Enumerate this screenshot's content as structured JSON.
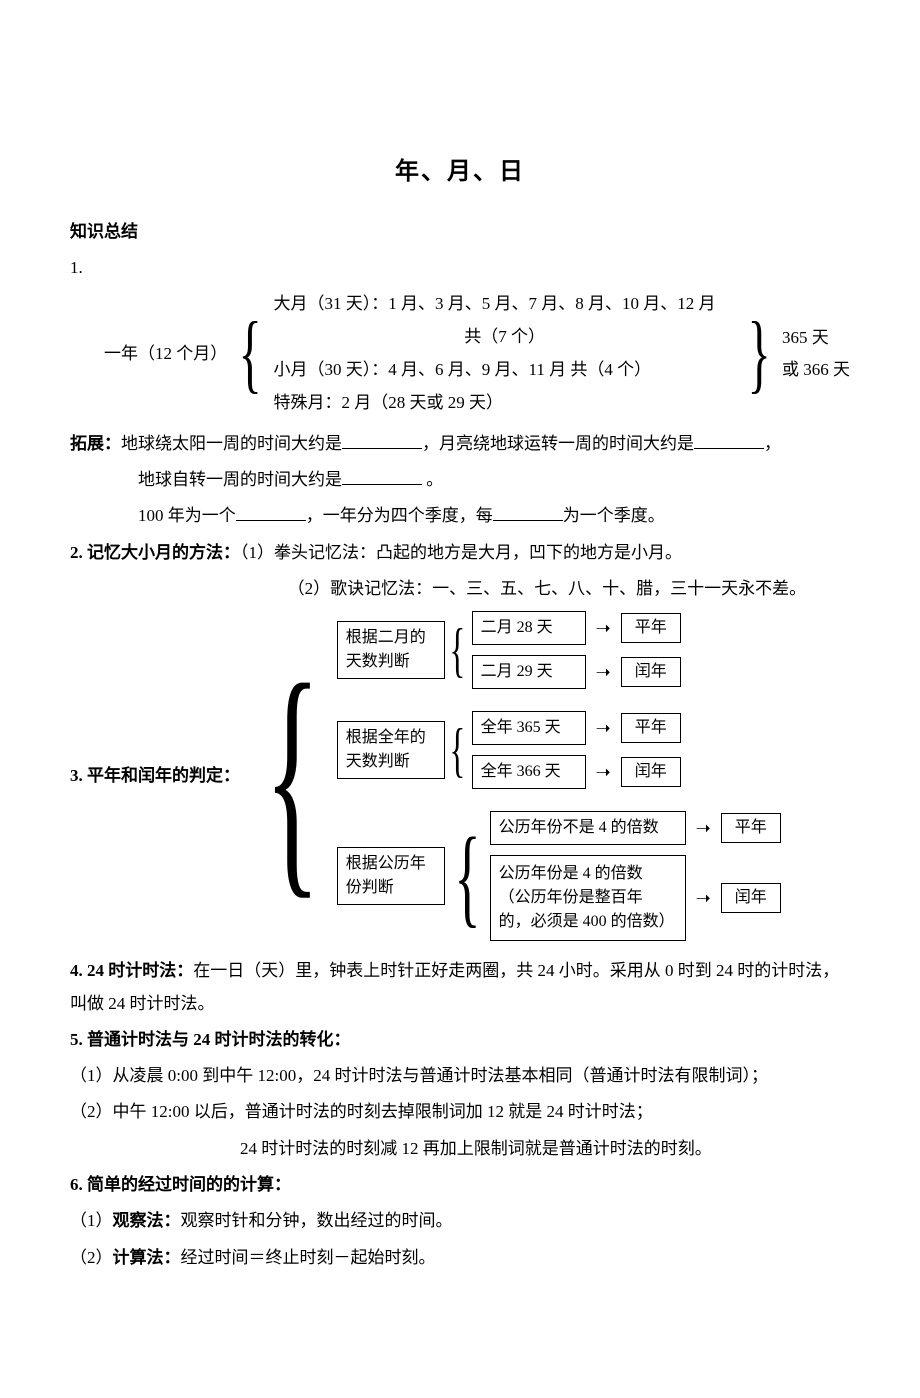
{
  "title": "年、月、日",
  "sectionHead": "知识总结",
  "item1": {
    "num": "1.",
    "left": "一年（12 个月）",
    "row1": "大月（31 天）：1 月、3 月、5 月、7 月、8 月、10 月、12 月",
    "row1b": "共（7 个）",
    "row2": "小月（30 天）：4 月、6 月、9 月、11 月  共（4 个）",
    "row3": "特殊月：2 月（28 天或 29 天）",
    "right1": "365 天",
    "right2": "或 366 天"
  },
  "expand": {
    "label": "拓展：",
    "line1a": "地球绕太阳一周的时间大约是",
    "line1b": "，月亮绕地球运转一周的时间大约是",
    "line1c": "，",
    "line2a": "地球自转一周的时间大约是",
    "line2b": " 。",
    "line3a": "100 年为一个",
    "line3b": "，一年分为四个季度，每",
    "line3c": "为一个季度。"
  },
  "item2": {
    "label": "2. 记忆大小月的方法：",
    "m1label": "（1）拳头记忆法：",
    "m1text": "凸起的地方是大月，凹下的地方是小月。",
    "m2label": "（2）歌诀记忆法：",
    "m2text": "一、三、五、七、八、十、腊，三十一天永不差。"
  },
  "item3": {
    "label": "3. 平年和闰年的判定：",
    "g1": {
      "head1": "根据二月的",
      "head2": "天数判断",
      "a": "二月 28 天",
      "aout": "平年",
      "b": "二月 29 天",
      "bout": "闰年"
    },
    "g2": {
      "head1": "根据全年的",
      "head2": "天数判断",
      "a": "全年 365 天",
      "aout": "平年",
      "b": "全年 366 天",
      "bout": "闰年"
    },
    "g3": {
      "head1": "根据公历年",
      "head2": "份判断",
      "a": "公历年份不是 4 的倍数",
      "aout": "平年",
      "b1": "公历年份是 4 的倍数",
      "b2": "（公历年份是整百年",
      "b3": "的，必须是 400 的倍数）",
      "bout": "闰年"
    }
  },
  "item4": {
    "label": "4. 24 时计时法：",
    "text": "在一日（天）里，钟表上时针正好走两圈，共 24 小时。采用从 0 时到 24 时的计时法，叫做 24 时计时法。"
  },
  "item5": {
    "label": "5. 普通计时法与 24 时计时法的转化：",
    "l1": "（1）从凌晨 0:00 到中午 12:00，24 时计时法与普通计时法基本相同（普通计时法有限制词）；",
    "l2": "（2）中午 12:00 以后，普通计时法的时刻去掉限制词加 12 就是 24 时计时法；",
    "l3": "24 时计时法的时刻减 12 再加上限制词就是普通计时法的时刻。"
  },
  "item6": {
    "label": "6. 简单的经过时间的的计算：",
    "l1a": "（1）",
    "l1b": "观察法：",
    "l1c": "观察时针和分钟，数出经过的时间。",
    "l2a": "（2）",
    "l2b": "计算法：",
    "l2c": "经过时间＝终止时刻－起始时刻。"
  }
}
